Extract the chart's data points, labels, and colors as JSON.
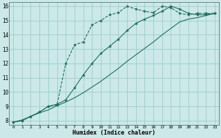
{
  "bg_color": "#cce8e8",
  "grid_color": "#99cccc",
  "line_color": "#1a6b5a",
  "xlabel": "Humidex (Indice chaleur)",
  "xlim": [
    -0.5,
    23.5
  ],
  "ylim": [
    7.7,
    16.3
  ],
  "xticks": [
    0,
    1,
    2,
    3,
    4,
    5,
    6,
    7,
    8,
    9,
    10,
    11,
    12,
    13,
    14,
    15,
    16,
    17,
    18,
    19,
    20,
    21,
    22,
    23
  ],
  "yticks": [
    8,
    9,
    10,
    11,
    12,
    13,
    14,
    15,
    16
  ],
  "line1_x": [
    0,
    1,
    2,
    3,
    4,
    5,
    6,
    7,
    8,
    9,
    10,
    11,
    12,
    13,
    14,
    15,
    16,
    17,
    18,
    19,
    20,
    21,
    22,
    23
  ],
  "line1_y": [
    7.9,
    8.0,
    8.3,
    8.6,
    9.0,
    9.1,
    12.0,
    13.3,
    13.5,
    14.7,
    15.0,
    15.4,
    15.55,
    16.0,
    15.8,
    15.65,
    15.55,
    16.0,
    15.9,
    15.5,
    15.4,
    15.5,
    15.5,
    15.5
  ],
  "line2_x": [
    0,
    1,
    2,
    3,
    4,
    5,
    6,
    7,
    8,
    9,
    10,
    11,
    12,
    13,
    14,
    15,
    16,
    17,
    18,
    19,
    20,
    21,
    22,
    23
  ],
  "line2_y": [
    7.9,
    8.0,
    8.3,
    8.6,
    9.0,
    9.15,
    9.45,
    10.3,
    11.2,
    12.0,
    12.7,
    13.2,
    13.7,
    14.3,
    14.8,
    15.1,
    15.35,
    15.65,
    16.0,
    15.8,
    15.5,
    15.4,
    15.4,
    15.5
  ],
  "line3_x": [
    0,
    1,
    2,
    3,
    4,
    5,
    6,
    7,
    8,
    9,
    10,
    11,
    12,
    13,
    14,
    15,
    16,
    17,
    18,
    19,
    20,
    21,
    22,
    23
  ],
  "line3_y": [
    7.9,
    8.05,
    8.3,
    8.55,
    8.75,
    9.05,
    9.3,
    9.6,
    9.95,
    10.35,
    10.75,
    11.2,
    11.65,
    12.15,
    12.6,
    13.05,
    13.5,
    14.0,
    14.45,
    14.9,
    15.1,
    15.2,
    15.35,
    15.5
  ]
}
